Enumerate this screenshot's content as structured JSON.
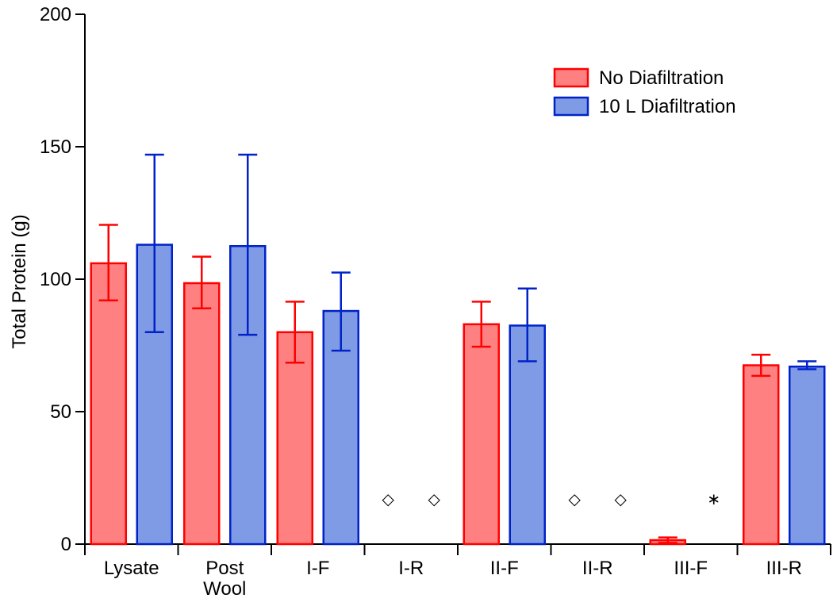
{
  "chart_data": {
    "type": "bar",
    "title": "",
    "xlabel": "",
    "ylabel": "Total Protein (g)",
    "ylim": [
      0,
      200
    ],
    "yticks": [
      0,
      50,
      100,
      150,
      200
    ],
    "grid": false,
    "legend_position": "top-right",
    "categories": [
      [
        "Lysate"
      ],
      [
        "Post",
        "Wool"
      ],
      [
        "I-F"
      ],
      [
        "I-R"
      ],
      [
        "II-F"
      ],
      [
        "II-R"
      ],
      [
        "III-F"
      ],
      [
        "III-R"
      ]
    ],
    "series": [
      {
        "name": "No Diafiltration",
        "fill": "#ff8080",
        "stroke": "#ff0000",
        "values": [
          106,
          98.5,
          80,
          null,
          83,
          null,
          1.5,
          67.5
        ],
        "err_low": [
          92,
          89,
          68.5,
          null,
          74.5,
          null,
          0.5,
          63.5
        ],
        "err_high": [
          120.5,
          108.5,
          91.5,
          null,
          91.5,
          null,
          2.5,
          71.5
        ],
        "markers": [
          "",
          "",
          "",
          "◇",
          "",
          "◇",
          "",
          ""
        ]
      },
      {
        "name": "10 L Diafiltration",
        "fill": "#7f9be6",
        "stroke": "#0022c8",
        "values": [
          113,
          112.5,
          88,
          null,
          82.5,
          null,
          null,
          67
        ],
        "err_low": [
          80,
          79,
          73,
          null,
          69,
          null,
          null,
          66
        ],
        "err_high": [
          147,
          147,
          102.5,
          null,
          96.5,
          null,
          null,
          69
        ],
        "markers": [
          "",
          "",
          "",
          "◇",
          "",
          "◇",
          "∗",
          ""
        ]
      }
    ],
    "marker_value": 17
  }
}
